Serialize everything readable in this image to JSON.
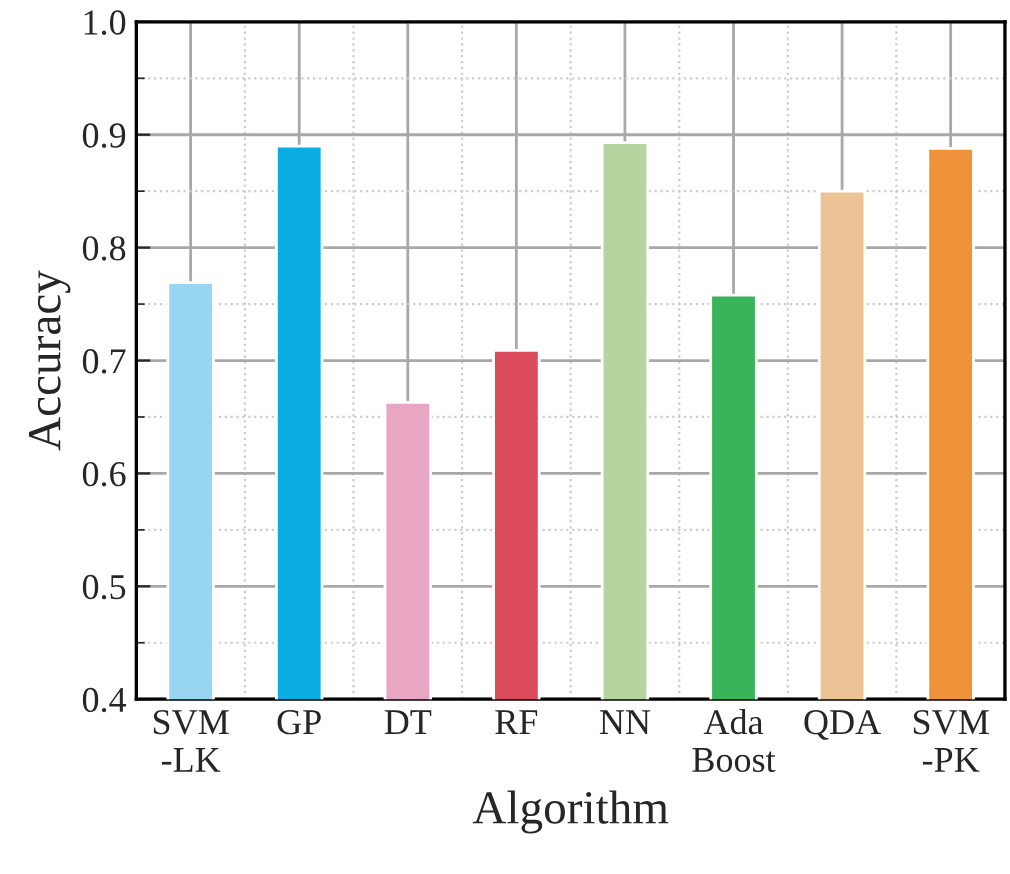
{
  "chart_data": {
    "type": "bar",
    "xlabel": "Algorithm",
    "ylabel": "Accuracy",
    "categories": [
      "SVM\n-LK",
      "GP",
      "DT",
      "RF",
      "NN",
      "Ada\nBoost",
      "QDA",
      "SVM\n-PK"
    ],
    "values": [
      0.769,
      0.89,
      0.663,
      0.709,
      0.893,
      0.758,
      0.85,
      0.888
    ],
    "colors": [
      "#98d5f0",
      "#0aade2",
      "#e9a6c3",
      "#db4a5a",
      "#b4d59e",
      "#38b55a",
      "#ecc394",
      "#ef933a"
    ],
    "ylim": [
      0.4,
      1.0
    ],
    "yticks": [
      0.4,
      0.5,
      0.6,
      0.7,
      0.8,
      0.9,
      {
        "value": 1.0,
        "label": "1.0"
      }
    ],
    "grid": true
  }
}
